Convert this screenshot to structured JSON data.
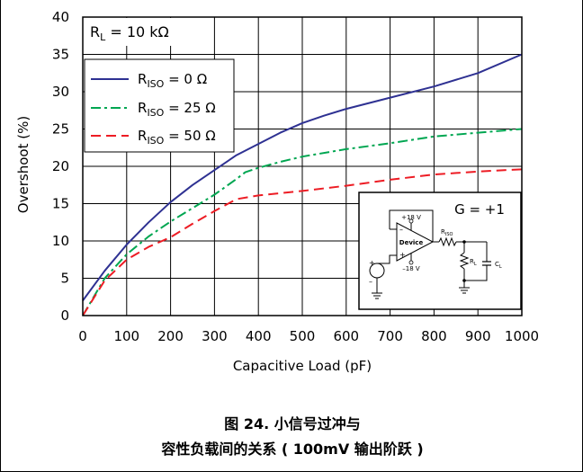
{
  "chart_data": {
    "type": "line",
    "xlabel": "Capacitive Load (pF)",
    "ylabel": "Overshoot (%)",
    "xlim": [
      0,
      1000
    ],
    "ylim": [
      0,
      40
    ],
    "xticks": [
      0,
      100,
      200,
      300,
      400,
      500,
      600,
      700,
      800,
      900,
      1000
    ],
    "yticks": [
      0,
      5,
      10,
      15,
      20,
      25,
      30,
      35,
      40
    ],
    "grid": true,
    "annotation": "R_L = 10 kΩ",
    "legend_position": "top-left",
    "series": [
      {
        "name": "R_ISO = 0 Ω",
        "color": "#2e3192",
        "dash": "solid",
        "x": [
          0,
          50,
          100,
          150,
          200,
          250,
          300,
          350,
          400,
          450,
          500,
          550,
          600,
          700,
          800,
          900,
          1000
        ],
        "y": [
          2,
          6,
          9.5,
          12.5,
          15.2,
          17.5,
          19.5,
          21.5,
          23,
          24.5,
          25.8,
          26.8,
          27.7,
          29.2,
          30.7,
          32.5,
          35
        ]
      },
      {
        "name": "R_ISO = 25 Ω",
        "color": "#00a651",
        "dash": "dashdot",
        "x": [
          0,
          50,
          100,
          150,
          200,
          250,
          300,
          350,
          370,
          400,
          450,
          500,
          600,
          700,
          800,
          900,
          1000
        ],
        "y": [
          0,
          5,
          8.2,
          10.6,
          12.6,
          14.4,
          16.2,
          18.3,
          19.2,
          19.8,
          20.6,
          21.3,
          22.3,
          23.1,
          24,
          24.5,
          25
        ]
      },
      {
        "name": "R_ISO = 50 Ω",
        "color": "#ed1c24",
        "dash": "dashed",
        "x": [
          0,
          50,
          100,
          150,
          200,
          250,
          300,
          350,
          400,
          500,
          600,
          700,
          800,
          900,
          1000
        ],
        "y": [
          0,
          4.7,
          7.5,
          9.2,
          10.5,
          12.3,
          14,
          15.6,
          16.1,
          16.7,
          17.4,
          18.2,
          18.9,
          19.3,
          19.6
        ]
      }
    ],
    "inset": {
      "gain_label": "G = +1",
      "plus_supply": "+18 V",
      "minus_supply": "–18 V",
      "device_label": "Device",
      "riso_label": "R",
      "riso_sub": "ISO",
      "rl_label": "R",
      "rl_sub": "L",
      "cl_label": "C",
      "cl_sub": "L",
      "plus_sign": "+",
      "minus_sign": "–"
    }
  },
  "caption": {
    "line1": "图 24. 小信号过冲与",
    "line2": "容性负载间的关系 ( 100mV 输出阶跃 )"
  }
}
